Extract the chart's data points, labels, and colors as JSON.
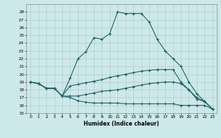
{
  "title": "",
  "xlabel": "Humidex (Indice chaleur)",
  "ylabel": "",
  "background_color": "#cce8e8",
  "grid_color": "#b0cccc",
  "line_color": "#1a6060",
  "xlim": [
    -0.5,
    23.5
  ],
  "ylim": [
    15,
    29
  ],
  "yticks": [
    15,
    16,
    17,
    18,
    19,
    20,
    21,
    22,
    23,
    24,
    25,
    26,
    27,
    28
  ],
  "xticks": [
    0,
    1,
    2,
    3,
    4,
    5,
    6,
    7,
    8,
    9,
    10,
    11,
    12,
    13,
    14,
    15,
    16,
    17,
    18,
    19,
    20,
    21,
    22,
    23
  ],
  "series": [
    [
      19.0,
      18.8,
      18.2,
      18.2,
      17.2,
      19.5,
      22.0,
      22.9,
      24.7,
      24.5,
      25.2,
      28.0,
      27.8,
      27.8,
      27.8,
      26.7,
      24.5,
      23.0,
      22.0,
      21.0,
      19.0,
      17.5,
      16.5,
      15.5
    ],
    [
      19.0,
      18.8,
      18.2,
      18.2,
      17.2,
      18.5,
      18.7,
      18.9,
      19.1,
      19.3,
      19.6,
      19.8,
      20.0,
      20.2,
      20.4,
      20.5,
      20.6,
      20.6,
      20.6,
      19.0,
      18.0,
      17.0,
      16.5,
      15.5
    ],
    [
      19.0,
      18.8,
      18.2,
      18.2,
      17.2,
      17.2,
      17.2,
      17.4,
      17.6,
      17.8,
      17.9,
      18.0,
      18.2,
      18.4,
      18.6,
      18.8,
      18.9,
      19.0,
      19.0,
      18.8,
      18.0,
      16.8,
      16.5,
      15.5
    ],
    [
      19.0,
      18.8,
      18.2,
      18.2,
      17.2,
      17.0,
      16.6,
      16.4,
      16.3,
      16.3,
      16.3,
      16.3,
      16.2,
      16.2,
      16.2,
      16.2,
      16.2,
      16.2,
      16.2,
      16.0,
      16.0,
      16.0,
      16.0,
      15.5
    ]
  ]
}
